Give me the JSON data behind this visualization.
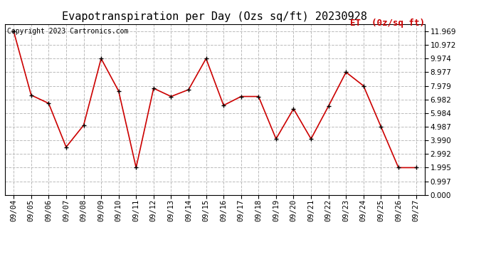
{
  "title": "Evapotranspiration per Day (Ozs sq/ft) 20230928",
  "copyright_text": "Copyright 2023 Cartronics.com",
  "legend_label": "ET  (0z/sq ft)",
  "dates": [
    "09/04",
    "09/05",
    "09/06",
    "09/07",
    "09/08",
    "09/09",
    "09/10",
    "09/11",
    "09/12",
    "09/13",
    "09/14",
    "09/15",
    "09/16",
    "09/17",
    "09/18",
    "09/19",
    "09/20",
    "09/21",
    "09/22",
    "09/23",
    "09/24",
    "09/25",
    "09/26",
    "09/27"
  ],
  "values": [
    11.969,
    7.3,
    6.7,
    3.5,
    5.1,
    9.974,
    7.6,
    1.995,
    7.8,
    7.2,
    7.7,
    9.974,
    6.55,
    7.2,
    7.2,
    4.1,
    6.3,
    4.1,
    6.5,
    8.977,
    7.979,
    4.987,
    1.995,
    1.995
  ],
  "yticks": [
    0.0,
    0.997,
    1.995,
    2.992,
    3.99,
    4.987,
    5.984,
    6.982,
    7.979,
    8.977,
    9.974,
    10.972,
    11.969
  ],
  "ylim": [
    0.0,
    12.5
  ],
  "line_color": "#cc0000",
  "marker_color": "#000000",
  "grid_color": "#bbbbbb",
  "background_color": "#ffffff",
  "title_fontsize": 11,
  "tick_fontsize": 7.5,
  "legend_fontsize": 9,
  "copyright_fontsize": 7
}
